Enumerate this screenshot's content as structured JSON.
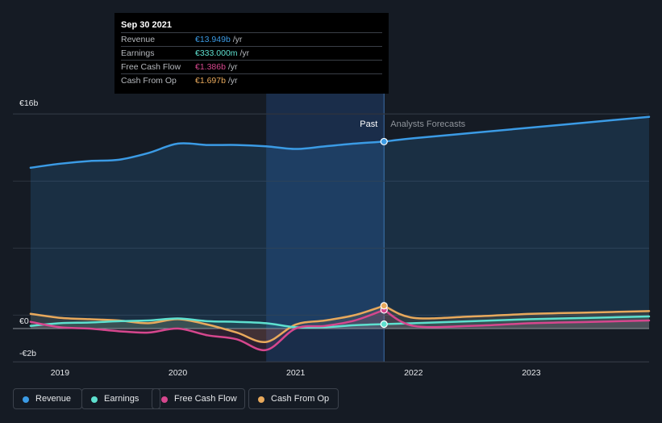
{
  "tooltip": {
    "date": "Sep 30 2021",
    "rows": [
      {
        "label": "Revenue",
        "value": "€13.949b",
        "unit": "/yr",
        "color": "#3b9be5"
      },
      {
        "label": "Earnings",
        "value": "€333.000m",
        "unit": "/yr",
        "color": "#5ee0cf"
      },
      {
        "label": "Free Cash Flow",
        "value": "€1.386b",
        "unit": "/yr",
        "color": "#d6478e"
      },
      {
        "label": "Cash From Op",
        "value": "€1.697b",
        "unit": "/yr",
        "color": "#e8a95c"
      }
    ]
  },
  "chart_data": {
    "type": "line",
    "xlim": [
      2018.6,
      2024.0
    ],
    "ylim": [
      -2,
      16
    ],
    "y_ticks": [
      {
        "value": 16,
        "label": "€16b"
      },
      {
        "value": 0,
        "label": "€0"
      },
      {
        "value": -2,
        "label": "-€2b"
      }
    ],
    "x_ticks": [
      {
        "value": 2019,
        "label": "2019"
      },
      {
        "value": 2020,
        "label": "2020"
      },
      {
        "value": 2021,
        "label": "2021"
      },
      {
        "value": 2022,
        "label": "2022"
      },
      {
        "value": 2023,
        "label": "2023"
      }
    ],
    "divider_x": 2021.75,
    "highlight_start": 2020.75,
    "past_label": "Past",
    "forecast_label": "Analysts Forecasts",
    "series": [
      {
        "name": "Revenue",
        "color": "#3b9be5",
        "area": true,
        "past": [
          [
            2018.75,
            12
          ],
          [
            2019,
            12.3
          ],
          [
            2019.25,
            12.5
          ],
          [
            2019.5,
            12.6
          ],
          [
            2019.75,
            13.1
          ],
          [
            2020,
            13.8
          ],
          [
            2020.25,
            13.7
          ],
          [
            2020.5,
            13.7
          ],
          [
            2020.75,
            13.6
          ],
          [
            2021,
            13.4
          ],
          [
            2021.25,
            13.6
          ],
          [
            2021.5,
            13.8
          ],
          [
            2021.75,
            13.95
          ]
        ],
        "forecast": [
          [
            2021.75,
            13.95
          ],
          [
            2022,
            14.2
          ],
          [
            2022.5,
            14.6
          ],
          [
            2023,
            15
          ],
          [
            2023.5,
            15.4
          ],
          [
            2024,
            15.8
          ]
        ]
      },
      {
        "name": "Earnings",
        "color": "#5ee0cf",
        "area": false,
        "past": [
          [
            2018.75,
            0.2
          ],
          [
            2019,
            0.4
          ],
          [
            2019.25,
            0.45
          ],
          [
            2019.5,
            0.55
          ],
          [
            2019.75,
            0.6
          ],
          [
            2020,
            0.75
          ],
          [
            2020.25,
            0.55
          ],
          [
            2020.5,
            0.5
          ],
          [
            2020.75,
            0.4
          ],
          [
            2021,
            0.1
          ],
          [
            2021.25,
            0.1
          ],
          [
            2021.5,
            0.25
          ],
          [
            2021.75,
            0.33
          ]
        ],
        "forecast": [
          [
            2021.75,
            0.33
          ],
          [
            2022,
            0.4
          ],
          [
            2022.5,
            0.55
          ],
          [
            2023,
            0.7
          ],
          [
            2023.5,
            0.8
          ],
          [
            2024,
            0.9
          ]
        ]
      },
      {
        "name": "Free Cash Flow",
        "color": "#d6478e",
        "area": false,
        "past": [
          [
            2018.75,
            0.5
          ],
          [
            2019,
            0.1
          ],
          [
            2019.25,
            0
          ],
          [
            2019.5,
            -0.2
          ],
          [
            2019.75,
            -0.3
          ],
          [
            2020,
            0
          ],
          [
            2020.25,
            -0.5
          ],
          [
            2020.5,
            -0.8
          ],
          [
            2020.75,
            -1.6
          ],
          [
            2021,
            0
          ],
          [
            2021.25,
            0.2
          ],
          [
            2021.5,
            0.6
          ],
          [
            2021.75,
            1.39
          ]
        ],
        "forecast": [
          [
            2021.75,
            1.39
          ],
          [
            2022,
            0.2
          ],
          [
            2022.5,
            0.2
          ],
          [
            2023,
            0.4
          ],
          [
            2023.5,
            0.5
          ],
          [
            2024,
            0.6
          ]
        ]
      },
      {
        "name": "Cash From Op",
        "color": "#e8a95c",
        "area": false,
        "past": [
          [
            2018.75,
            1.1
          ],
          [
            2019,
            0.8
          ],
          [
            2019.25,
            0.7
          ],
          [
            2019.5,
            0.6
          ],
          [
            2019.75,
            0.4
          ],
          [
            2020,
            0.7
          ],
          [
            2020.25,
            0.3
          ],
          [
            2020.5,
            -0.3
          ],
          [
            2020.75,
            -1
          ],
          [
            2021,
            0.3
          ],
          [
            2021.25,
            0.6
          ],
          [
            2021.5,
            1
          ],
          [
            2021.75,
            1.7
          ]
        ],
        "forecast": [
          [
            2021.75,
            1.7
          ],
          [
            2022,
            0.8
          ],
          [
            2022.5,
            0.9
          ],
          [
            2023,
            1.1
          ],
          [
            2023.5,
            1.2
          ],
          [
            2024,
            1.3
          ]
        ]
      }
    ]
  },
  "legend": [
    {
      "label": "Revenue",
      "color": "#3b9be5"
    },
    {
      "label": "Earnings",
      "color": "#5ee0cf"
    },
    {
      "label": "Free Cash Flow",
      "color": "#d6478e"
    },
    {
      "label": "Cash From Op",
      "color": "#e8a95c"
    }
  ]
}
